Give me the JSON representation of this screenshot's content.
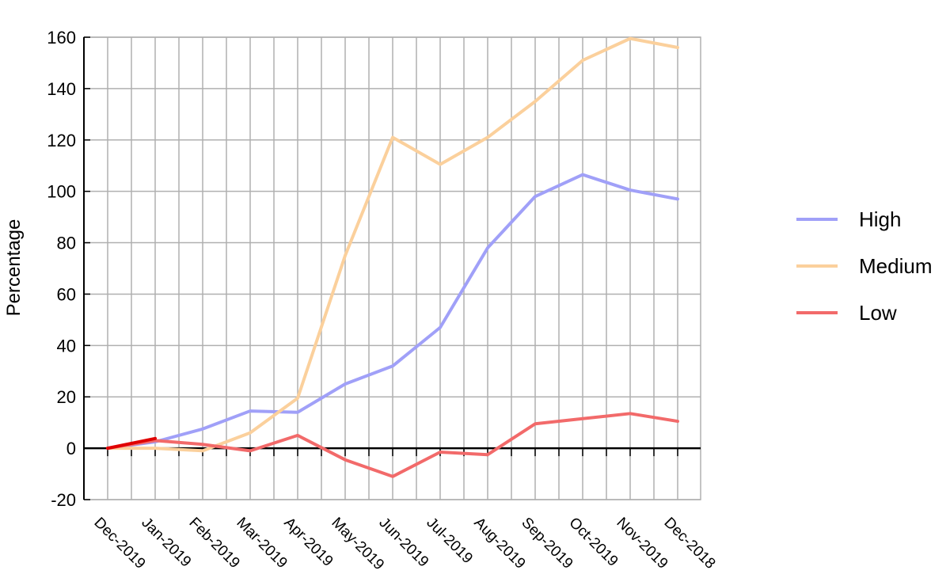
{
  "chart_data": {
    "type": "line",
    "title": "",
    "xlabel": "",
    "ylabel": "Percentage",
    "ylim": [
      -20,
      160
    ],
    "yticks": [
      -20,
      0,
      20,
      40,
      60,
      80,
      100,
      120,
      140,
      160
    ],
    "categories": [
      "Dec-2019",
      "Jan-2019",
      "Feb-2019",
      "Mar-2019",
      "Apr-2019",
      "May-2019",
      "Jun-2019",
      "Jul-2019",
      "Aug-2019",
      "Sep-2019",
      "Oct-2019",
      "Nov-2019",
      "Dec-2018"
    ],
    "grid": true,
    "legend_position": "right",
    "series": [
      {
        "name": "High",
        "color": "#a0a0f8",
        "values": [
          0,
          2.5,
          7.5,
          14.5,
          14,
          25,
          32,
          47,
          78,
          98,
          106.5,
          100.5,
          97
        ]
      },
      {
        "name": "Medium",
        "color": "#fbd09c",
        "values": [
          0,
          0,
          -1,
          6,
          19.5,
          75,
          121,
          110.5,
          121,
          135,
          151,
          159.5,
          156
        ]
      },
      {
        "name": "Low",
        "color": "#f26a6a",
        "values": [
          0,
          3,
          1.5,
          -1,
          5,
          -4.5,
          -11,
          -1.5,
          -2.5,
          9.5,
          11.5,
          13.5,
          10.5
        ]
      }
    ]
  }
}
